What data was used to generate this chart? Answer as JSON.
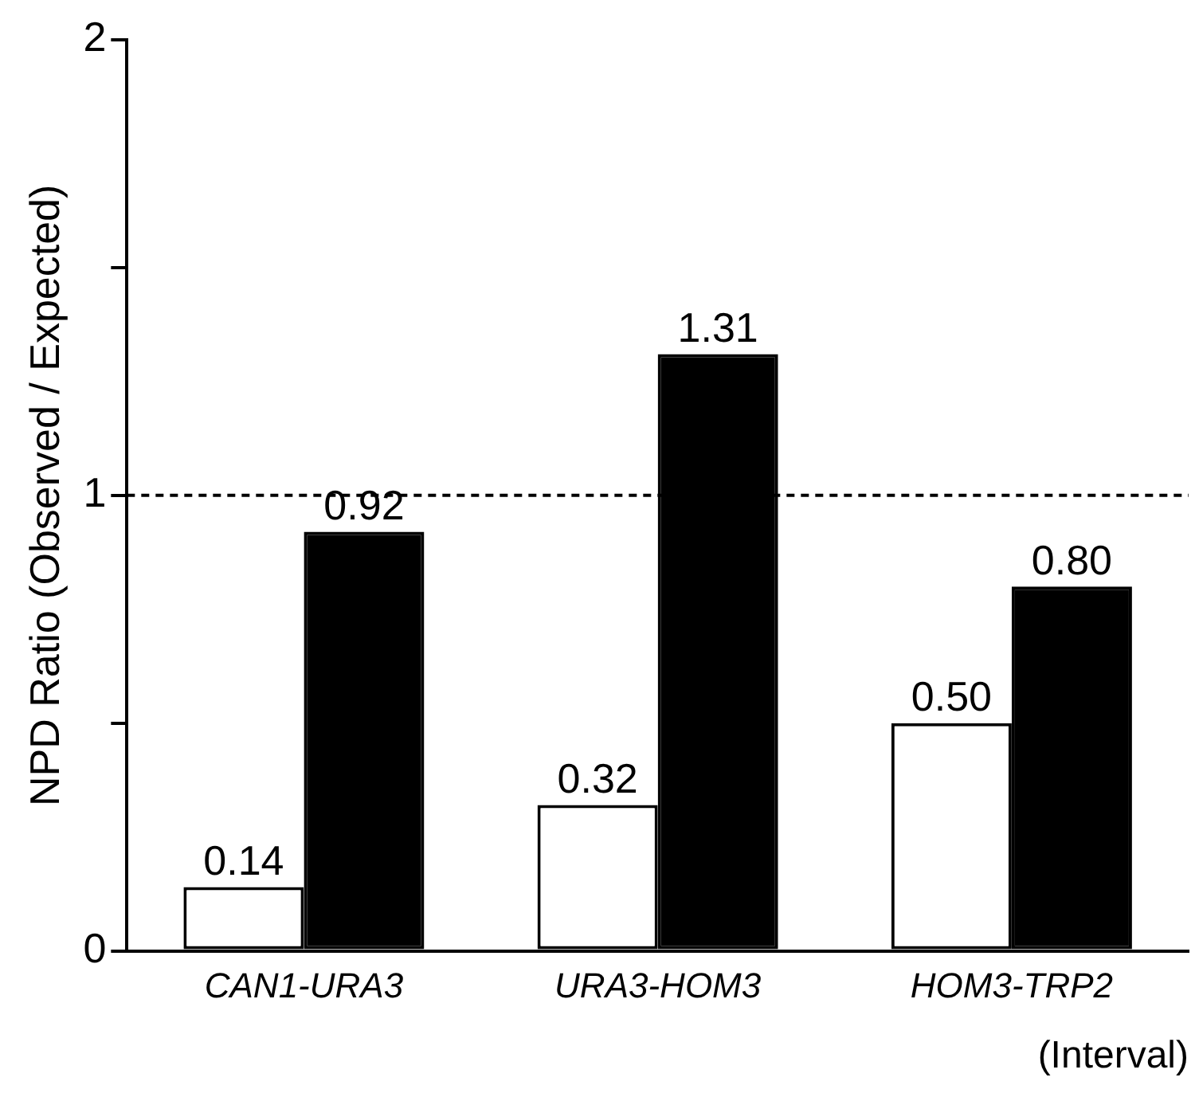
{
  "chart_data": {
    "type": "bar",
    "ylabel": "NPD Ratio (Observed / Expected)",
    "xlabel": "(Interval)",
    "categories": [
      "CAN1-URA3",
      "URA3-HOM3",
      "HOM3-TRP2"
    ],
    "series": [
      {
        "color": "#ffffff",
        "values": [
          0.14,
          0.32,
          0.5
        ],
        "value_labels": [
          "0.14",
          "0.32",
          "0.50"
        ]
      },
      {
        "color": "#000000",
        "values": [
          0.92,
          1.31,
          0.8
        ],
        "value_labels": [
          "0.92",
          "1.31",
          "0.80"
        ]
      }
    ],
    "ylim": [
      0,
      2
    ],
    "yticks": [
      0,
      {
        "value": 0.5,
        "label": null
      },
      1,
      {
        "value": 1.5,
        "label": null
      },
      2
    ],
    "ref_lines": [
      {
        "axis": "y",
        "value": 1,
        "line_style": "dashed",
        "color": "#000000"
      }
    ],
    "grid": false,
    "legend": false
  }
}
